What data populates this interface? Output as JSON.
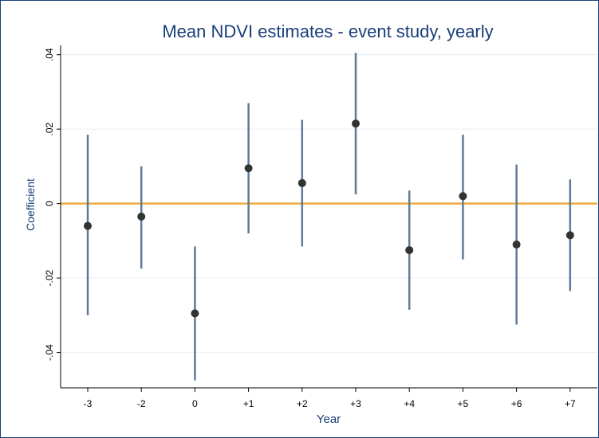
{
  "chart_data": {
    "type": "scatter",
    "title": "Mean NDVI estimates - event study, yearly",
    "xlabel": "Year",
    "ylabel": "Coefficient",
    "categories": [
      "-3",
      "-2",
      "0",
      "+1",
      "+2",
      "+3",
      "+4",
      "+5",
      "+6",
      "+7"
    ],
    "estimates": [
      -0.006,
      -0.0035,
      -0.0295,
      0.0095,
      0.0055,
      0.0215,
      -0.0125,
      0.002,
      -0.011,
      -0.0085
    ],
    "ci_low": [
      -0.03,
      -0.0175,
      -0.0475,
      -0.008,
      -0.0115,
      0.0025,
      -0.0285,
      -0.015,
      -0.0325,
      -0.0235
    ],
    "ci_high": [
      0.0185,
      0.01,
      -0.0115,
      0.027,
      0.0225,
      0.0405,
      0.0035,
      0.0185,
      0.0105,
      0.0065
    ],
    "ylim": [
      -0.0495,
      0.0425
    ],
    "yticks": [
      0.04,
      0.02,
      0,
      -0.02,
      -0.04
    ],
    "ytick_labels": [
      ".04",
      ".02",
      "0",
      "-.02",
      "-.04"
    ],
    "reference_line": 0,
    "grid": true,
    "colors": {
      "title": "#1a3f7a",
      "point": "#333333",
      "ci_line": "#5d7c99",
      "reference_line": "#f2a93b",
      "grid": "#e8eef3",
      "axis": "#000000"
    }
  }
}
